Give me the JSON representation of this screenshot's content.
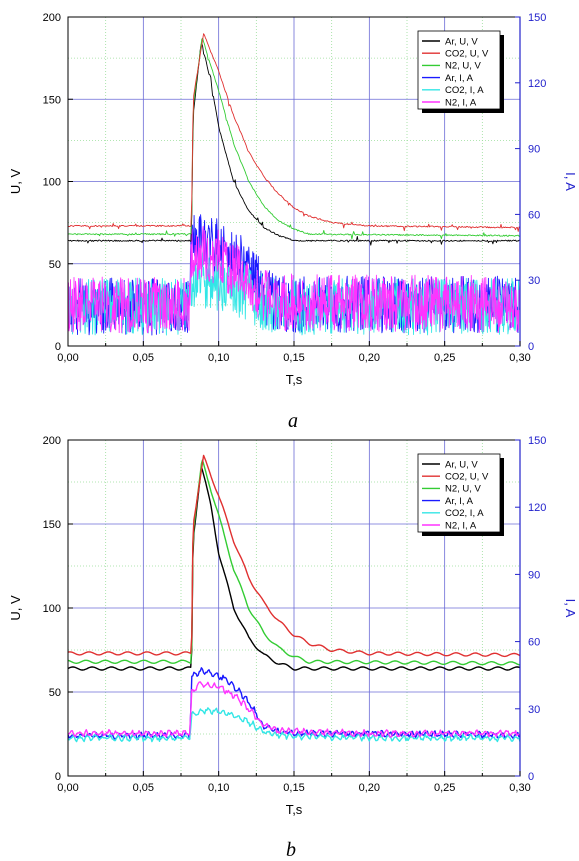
{
  "chart_data": [
    {
      "type": "line",
      "panel_label": "a",
      "title": "",
      "xlabel": "T,s",
      "ylabel_left": "U, V",
      "ylabel_right": "I, A",
      "xlim": [
        0,
        0.3
      ],
      "ylim_left": [
        0,
        200
      ],
      "ylim_right": [
        0,
        150
      ],
      "xticks": [
        "0,00",
        "0,05",
        "0,10",
        "0,15",
        "0,20",
        "0,25",
        "0,30"
      ],
      "yticks_left": [
        "0",
        "50",
        "100",
        "150",
        "200"
      ],
      "yticks_right": [
        "0",
        "30",
        "60",
        "90",
        "120",
        "150"
      ],
      "grid": true,
      "legend_position": "top-right",
      "style": "noisy",
      "series": [
        {
          "name": "Ar, U, V",
          "axis": "left",
          "color": "#000000",
          "x": [
            0,
            0.082,
            0.083,
            0.0885,
            0.095,
            0.1,
            0.11,
            0.12,
            0.13,
            0.14,
            0.15,
            0.3
          ],
          "y": [
            64,
            64,
            140,
            185,
            160,
            133,
            100,
            82,
            72,
            67,
            64,
            64
          ]
        },
        {
          "name": "CO2, U, V",
          "axis": "left",
          "color": "#e03030",
          "x": [
            0,
            0.082,
            0.083,
            0.09,
            0.1,
            0.11,
            0.12,
            0.13,
            0.14,
            0.15,
            0.16,
            0.175,
            0.2,
            0.3
          ],
          "y": [
            73,
            73,
            150,
            190,
            167,
            140,
            118,
            103,
            92,
            84,
            79,
            75,
            73,
            72
          ]
        },
        {
          "name": "N2, U, V",
          "axis": "left",
          "color": "#33cc33",
          "x": [
            0,
            0.082,
            0.083,
            0.089,
            0.1,
            0.11,
            0.12,
            0.13,
            0.14,
            0.15,
            0.16,
            0.3
          ],
          "y": [
            68,
            68,
            145,
            188,
            155,
            123,
            100,
            85,
            76,
            71,
            68,
            67
          ]
        },
        {
          "name": "Ar, I, A",
          "axis": "right",
          "color": "#1a1aff",
          "x": [
            0,
            0.081,
            0.082,
            0.09,
            0.1,
            0.115,
            0.125,
            0.132,
            0.14,
            0.3
          ],
          "y": [
            18,
            18,
            50,
            48,
            45,
            38,
            30,
            22,
            19,
            19
          ]
        },
        {
          "name": "CO2, I, A",
          "axis": "right",
          "color": "#33e6e6",
          "x": [
            0,
            0.081,
            0.082,
            0.09,
            0.1,
            0.11,
            0.12,
            0.13,
            0.14,
            0.3
          ],
          "y": [
            18,
            18,
            30,
            30,
            29,
            27,
            24,
            20,
            18,
            18
          ]
        },
        {
          "name": "N2, I, A",
          "axis": "right",
          "color": "#ff33ff",
          "x": [
            0,
            0.081,
            0.082,
            0.09,
            0.1,
            0.11,
            0.12,
            0.13,
            0.14,
            0.3
          ],
          "y": [
            19,
            19,
            42,
            42,
            40,
            35,
            29,
            23,
            20,
            19
          ]
        }
      ]
    },
    {
      "type": "line",
      "panel_label": "b",
      "title": "",
      "xlabel": "T,s",
      "ylabel_left": "U, V",
      "ylabel_right": "I, A",
      "xlim": [
        0,
        0.3
      ],
      "ylim_left": [
        0,
        200
      ],
      "ylim_right": [
        0,
        150
      ],
      "xticks": [
        "0,00",
        "0,05",
        "0,10",
        "0,15",
        "0,20",
        "0,25",
        "0,30"
      ],
      "yticks_left": [
        "0",
        "50",
        "100",
        "150",
        "200"
      ],
      "yticks_right": [
        "0",
        "30",
        "60",
        "90",
        "120",
        "150"
      ],
      "grid": true,
      "legend_position": "top-right",
      "style": "smooth",
      "series": [
        {
          "name": "Ar, U, V",
          "axis": "left",
          "color": "#000000",
          "x": [
            0,
            0.082,
            0.083,
            0.0885,
            0.095,
            0.1,
            0.11,
            0.12,
            0.13,
            0.14,
            0.15,
            0.3
          ],
          "y": [
            64,
            64,
            140,
            185,
            160,
            133,
            100,
            82,
            72,
            67,
            64,
            64
          ]
        },
        {
          "name": "CO2, U, V",
          "axis": "left",
          "color": "#e03030",
          "x": [
            0,
            0.082,
            0.083,
            0.09,
            0.1,
            0.11,
            0.12,
            0.13,
            0.14,
            0.15,
            0.16,
            0.175,
            0.2,
            0.3
          ],
          "y": [
            73,
            73,
            150,
            190,
            167,
            140,
            118,
            103,
            92,
            84,
            79,
            75,
            73,
            72
          ]
        },
        {
          "name": "N2, U, V",
          "axis": "left",
          "color": "#33cc33",
          "x": [
            0,
            0.082,
            0.083,
            0.089,
            0.1,
            0.11,
            0.12,
            0.13,
            0.14,
            0.15,
            0.16,
            0.3
          ],
          "y": [
            68,
            68,
            145,
            188,
            155,
            123,
            100,
            85,
            76,
            71,
            68,
            67
          ]
        },
        {
          "name": "Ar, I, A",
          "axis": "right",
          "color": "#1a1aff",
          "x": [
            0,
            0.081,
            0.082,
            0.088,
            0.095,
            0.105,
            0.115,
            0.125,
            0.13,
            0.14,
            0.15,
            0.2,
            0.3
          ],
          "y": [
            18,
            18,
            44,
            47,
            46,
            43,
            37,
            28,
            22,
            20,
            19,
            19,
            18
          ]
        },
        {
          "name": "CO2, I, A",
          "axis": "right",
          "color": "#33e6e6",
          "x": [
            0,
            0.081,
            0.082,
            0.088,
            0.1,
            0.11,
            0.12,
            0.13,
            0.14,
            0.2,
            0.3
          ],
          "y": [
            17,
            17,
            27,
            29,
            29,
            27,
            24,
            20,
            18,
            17,
            17
          ]
        },
        {
          "name": "N2, I, A",
          "axis": "right",
          "color": "#ff33ff",
          "x": [
            0,
            0.081,
            0.082,
            0.088,
            0.1,
            0.11,
            0.12,
            0.13,
            0.14,
            0.2,
            0.3
          ],
          "y": [
            19,
            19,
            38,
            41,
            40,
            36,
            30,
            23,
            20,
            19,
            19
          ]
        }
      ]
    }
  ]
}
